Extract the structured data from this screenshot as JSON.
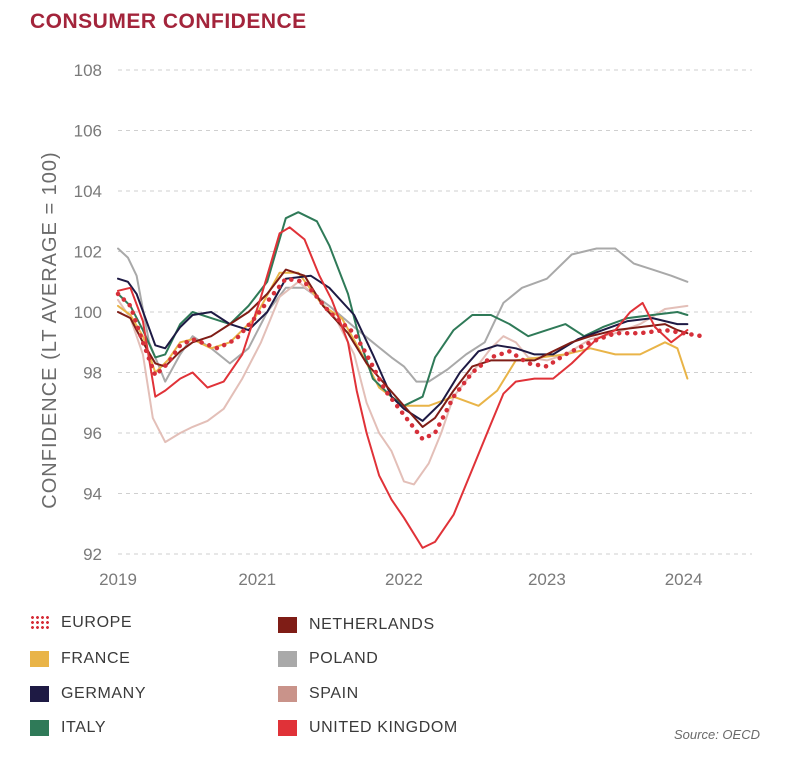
{
  "title": "CONSUMER CONFIDENCE",
  "source": "Source: OECD",
  "chart_data": {
    "type": "line",
    "ylabel": "CONFIDENCE (LT AVERAGE = 100)",
    "ylim": [
      92,
      108
    ],
    "yticks": [
      92,
      94,
      96,
      98,
      100,
      102,
      104,
      106,
      108
    ],
    "xticks": [
      {
        "x": 2019.0,
        "label": "2019"
      },
      {
        "x": 2020.12,
        "label": "2021"
      },
      {
        "x": 2021.3,
        "label": "2022"
      },
      {
        "x": 2022.45,
        "label": "2023"
      },
      {
        "x": 2023.55,
        "label": "2024"
      }
    ],
    "xlim": [
      2019.0,
      2024.1
    ],
    "grid": "horizontal-dashed",
    "legend_position": "bottom",
    "series": [
      {
        "name": "EUROPE",
        "color": "#d6303a",
        "style": "dotted",
        "points": [
          [
            2019.0,
            100.6
          ],
          [
            2019.1,
            100.2
          ],
          [
            2019.2,
            99.0
          ],
          [
            2019.3,
            97.9
          ],
          [
            2019.4,
            98.3
          ],
          [
            2019.5,
            98.9
          ],
          [
            2019.6,
            99.1
          ],
          [
            2019.8,
            98.8
          ],
          [
            2019.95,
            99.1
          ],
          [
            2020.1,
            99.8
          ],
          [
            2020.25,
            100.6
          ],
          [
            2020.35,
            101.1
          ],
          [
            2020.5,
            101.0
          ],
          [
            2020.7,
            100.0
          ],
          [
            2020.9,
            99.3
          ],
          [
            2021.0,
            98.6
          ],
          [
            2021.15,
            97.4
          ],
          [
            2021.3,
            96.6
          ],
          [
            2021.45,
            95.8
          ],
          [
            2021.55,
            96.0
          ],
          [
            2021.7,
            97.2
          ],
          [
            2021.85,
            98.0
          ],
          [
            2022.0,
            98.5
          ],
          [
            2022.15,
            98.7
          ],
          [
            2022.3,
            98.3
          ],
          [
            2022.45,
            98.2
          ],
          [
            2022.6,
            98.6
          ],
          [
            2022.8,
            99.0
          ],
          [
            2023.0,
            99.3
          ],
          [
            2023.2,
            99.3
          ],
          [
            2023.4,
            99.4
          ],
          [
            2023.55,
            99.3
          ],
          [
            2023.7,
            99.2
          ]
        ]
      },
      {
        "name": "FRANCE",
        "color": "#e9b448",
        "style": "solid",
        "points": [
          [
            2019.0,
            100.2
          ],
          [
            2019.1,
            99.9
          ],
          [
            2019.2,
            99.2
          ],
          [
            2019.3,
            98.0
          ],
          [
            2019.4,
            98.4
          ],
          [
            2019.5,
            99.0
          ],
          [
            2019.6,
            99.1
          ],
          [
            2019.75,
            98.8
          ],
          [
            2019.9,
            99.0
          ],
          [
            2020.1,
            99.8
          ],
          [
            2020.3,
            101.3
          ],
          [
            2020.45,
            101.3
          ],
          [
            2020.65,
            100.2
          ],
          [
            2020.8,
            99.8
          ],
          [
            2020.95,
            98.7
          ],
          [
            2021.1,
            97.5
          ],
          [
            2021.3,
            96.9
          ],
          [
            2021.5,
            96.9
          ],
          [
            2021.7,
            97.2
          ],
          [
            2021.9,
            96.9
          ],
          [
            2022.05,
            97.4
          ],
          [
            2022.2,
            98.4
          ],
          [
            2022.4,
            98.5
          ],
          [
            2022.6,
            98.6
          ],
          [
            2022.8,
            98.8
          ],
          [
            2023.0,
            98.6
          ],
          [
            2023.2,
            98.6
          ],
          [
            2023.4,
            99.0
          ],
          [
            2023.5,
            98.8
          ],
          [
            2023.58,
            97.8
          ]
        ]
      },
      {
        "name": "GERMANY",
        "color": "#1e1a44",
        "style": "solid",
        "points": [
          [
            2019.0,
            101.1
          ],
          [
            2019.08,
            101.0
          ],
          [
            2019.15,
            100.6
          ],
          [
            2019.3,
            98.9
          ],
          [
            2019.38,
            98.8
          ],
          [
            2019.5,
            99.5
          ],
          [
            2019.6,
            99.9
          ],
          [
            2019.75,
            100.0
          ],
          [
            2019.9,
            99.6
          ],
          [
            2020.05,
            99.4
          ],
          [
            2020.2,
            100.0
          ],
          [
            2020.35,
            101.1
          ],
          [
            2020.55,
            101.2
          ],
          [
            2020.7,
            100.8
          ],
          [
            2020.9,
            99.9
          ],
          [
            2021.05,
            98.6
          ],
          [
            2021.2,
            97.2
          ],
          [
            2021.3,
            96.8
          ],
          [
            2021.45,
            96.4
          ],
          [
            2021.6,
            97.0
          ],
          [
            2021.75,
            98.0
          ],
          [
            2021.9,
            98.7
          ],
          [
            2022.05,
            98.9
          ],
          [
            2022.2,
            98.8
          ],
          [
            2022.35,
            98.6
          ],
          [
            2022.5,
            98.6
          ],
          [
            2022.7,
            99.1
          ],
          [
            2022.9,
            99.4
          ],
          [
            2023.1,
            99.7
          ],
          [
            2023.3,
            99.8
          ],
          [
            2023.5,
            99.6
          ],
          [
            2023.58,
            99.6
          ]
        ]
      },
      {
        "name": "ITALY",
        "color": "#2f7a58",
        "style": "solid",
        "points": [
          [
            2019.0,
            100.6
          ],
          [
            2019.1,
            100.2
          ],
          [
            2019.2,
            99.4
          ],
          [
            2019.3,
            98.5
          ],
          [
            2019.38,
            98.6
          ],
          [
            2019.5,
            99.6
          ],
          [
            2019.6,
            100.0
          ],
          [
            2019.75,
            99.8
          ],
          [
            2019.9,
            99.6
          ],
          [
            2020.05,
            100.2
          ],
          [
            2020.2,
            101.0
          ],
          [
            2020.35,
            103.1
          ],
          [
            2020.45,
            103.3
          ],
          [
            2020.6,
            103.0
          ],
          [
            2020.7,
            102.2
          ],
          [
            2020.85,
            100.6
          ],
          [
            2020.95,
            99.0
          ],
          [
            2021.05,
            97.8
          ],
          [
            2021.2,
            97.2
          ],
          [
            2021.3,
            96.9
          ],
          [
            2021.45,
            97.2
          ],
          [
            2021.55,
            98.5
          ],
          [
            2021.7,
            99.4
          ],
          [
            2021.85,
            99.9
          ],
          [
            2022.0,
            99.9
          ],
          [
            2022.15,
            99.6
          ],
          [
            2022.3,
            99.2
          ],
          [
            2022.45,
            99.4
          ],
          [
            2022.6,
            99.6
          ],
          [
            2022.75,
            99.2
          ],
          [
            2022.9,
            99.5
          ],
          [
            2023.1,
            99.8
          ],
          [
            2023.3,
            99.9
          ],
          [
            2023.5,
            100.0
          ],
          [
            2023.58,
            99.9
          ]
        ]
      },
      {
        "name": "NETHERLANDS",
        "color": "#7f1d16",
        "style": "solid",
        "points": [
          [
            2019.0,
            100.0
          ],
          [
            2019.1,
            99.8
          ],
          [
            2019.2,
            99.0
          ],
          [
            2019.3,
            98.3
          ],
          [
            2019.38,
            98.2
          ],
          [
            2019.5,
            98.7
          ],
          [
            2019.6,
            99.0
          ],
          [
            2019.75,
            99.2
          ],
          [
            2019.9,
            99.6
          ],
          [
            2020.05,
            100.0
          ],
          [
            2020.2,
            100.6
          ],
          [
            2020.35,
            101.4
          ],
          [
            2020.5,
            101.2
          ],
          [
            2020.65,
            100.2
          ],
          [
            2020.85,
            99.3
          ],
          [
            2021.0,
            98.3
          ],
          [
            2021.15,
            97.6
          ],
          [
            2021.3,
            96.9
          ],
          [
            2021.45,
            96.2
          ],
          [
            2021.55,
            96.5
          ],
          [
            2021.7,
            97.4
          ],
          [
            2021.85,
            98.2
          ],
          [
            2022.0,
            98.4
          ],
          [
            2022.2,
            98.4
          ],
          [
            2022.35,
            98.4
          ],
          [
            2022.5,
            98.7
          ],
          [
            2022.65,
            99.0
          ],
          [
            2022.8,
            99.2
          ],
          [
            2023.0,
            99.4
          ],
          [
            2023.2,
            99.5
          ],
          [
            2023.4,
            99.6
          ],
          [
            2023.5,
            99.4
          ],
          [
            2023.58,
            99.3
          ]
        ]
      },
      {
        "name": "POLAND",
        "color": "#a9a9a9",
        "style": "solid",
        "points": [
          [
            2019.0,
            102.1
          ],
          [
            2019.08,
            101.8
          ],
          [
            2019.15,
            101.2
          ],
          [
            2019.25,
            99.0
          ],
          [
            2019.38,
            97.7
          ],
          [
            2019.5,
            98.6
          ],
          [
            2019.6,
            99.2
          ],
          [
            2019.75,
            98.8
          ],
          [
            2019.9,
            98.3
          ],
          [
            2020.05,
            98.8
          ],
          [
            2020.2,
            100.0
          ],
          [
            2020.35,
            100.8
          ],
          [
            2020.5,
            100.8
          ],
          [
            2020.7,
            100.2
          ],
          [
            2020.9,
            99.5
          ],
          [
            2021.05,
            99.0
          ],
          [
            2021.2,
            98.5
          ],
          [
            2021.3,
            98.2
          ],
          [
            2021.4,
            97.7
          ],
          [
            2021.5,
            97.7
          ],
          [
            2021.65,
            98.1
          ],
          [
            2021.8,
            98.6
          ],
          [
            2021.95,
            99.0
          ],
          [
            2022.1,
            100.3
          ],
          [
            2022.25,
            100.8
          ],
          [
            2022.45,
            101.1
          ],
          [
            2022.65,
            101.9
          ],
          [
            2022.85,
            102.1
          ],
          [
            2023.0,
            102.1
          ],
          [
            2023.15,
            101.6
          ],
          [
            2023.3,
            101.4
          ],
          [
            2023.45,
            101.2
          ],
          [
            2023.58,
            101.0
          ]
        ]
      },
      {
        "name": "SPAIN",
        "color": "#e3bfb8",
        "style": "solid",
        "points": [
          [
            2019.0,
            100.4
          ],
          [
            2019.1,
            99.8
          ],
          [
            2019.2,
            98.6
          ],
          [
            2019.28,
            96.5
          ],
          [
            2019.38,
            95.7
          ],
          [
            2019.5,
            96.0
          ],
          [
            2019.6,
            96.2
          ],
          [
            2019.72,
            96.4
          ],
          [
            2019.85,
            96.8
          ],
          [
            2020.0,
            97.8
          ],
          [
            2020.15,
            99.0
          ],
          [
            2020.3,
            100.5
          ],
          [
            2020.45,
            101.0
          ],
          [
            2020.6,
            100.5
          ],
          [
            2020.75,
            99.8
          ],
          [
            2020.9,
            98.6
          ],
          [
            2021.0,
            97.0
          ],
          [
            2021.1,
            96.0
          ],
          [
            2021.2,
            95.4
          ],
          [
            2021.3,
            94.4
          ],
          [
            2021.38,
            94.3
          ],
          [
            2021.5,
            95.0
          ],
          [
            2021.6,
            96.0
          ],
          [
            2021.7,
            97.2
          ],
          [
            2021.85,
            98.0
          ],
          [
            2022.0,
            98.8
          ],
          [
            2022.1,
            99.2
          ],
          [
            2022.2,
            99.0
          ],
          [
            2022.3,
            98.5
          ],
          [
            2022.45,
            98.4
          ],
          [
            2022.6,
            98.6
          ],
          [
            2022.8,
            99.1
          ],
          [
            2023.0,
            99.3
          ],
          [
            2023.2,
            99.6
          ],
          [
            2023.4,
            100.1
          ],
          [
            2023.58,
            100.2
          ]
        ]
      },
      {
        "name": "UNITED KINGDOM",
        "color": "#e03238",
        "style": "solid",
        "points": [
          [
            2019.0,
            100.7
          ],
          [
            2019.1,
            100.8
          ],
          [
            2019.2,
            99.7
          ],
          [
            2019.3,
            97.2
          ],
          [
            2019.38,
            97.4
          ],
          [
            2019.5,
            97.8
          ],
          [
            2019.6,
            98.0
          ],
          [
            2019.72,
            97.5
          ],
          [
            2019.85,
            97.7
          ],
          [
            2020.0,
            98.6
          ],
          [
            2020.15,
            100.5
          ],
          [
            2020.3,
            102.6
          ],
          [
            2020.38,
            102.8
          ],
          [
            2020.5,
            102.4
          ],
          [
            2020.62,
            101.2
          ],
          [
            2020.72,
            100.4
          ],
          [
            2020.85,
            99.0
          ],
          [
            2020.92,
            97.4
          ],
          [
            2021.0,
            96.0
          ],
          [
            2021.1,
            94.6
          ],
          [
            2021.2,
            93.8
          ],
          [
            2021.3,
            93.2
          ],
          [
            2021.45,
            92.2
          ],
          [
            2021.55,
            92.4
          ],
          [
            2021.7,
            93.3
          ],
          [
            2021.85,
            94.8
          ],
          [
            2022.0,
            96.3
          ],
          [
            2022.1,
            97.3
          ],
          [
            2022.2,
            97.7
          ],
          [
            2022.35,
            97.8
          ],
          [
            2022.5,
            97.8
          ],
          [
            2022.65,
            98.3
          ],
          [
            2022.85,
            99.1
          ],
          [
            2023.0,
            99.4
          ],
          [
            2023.12,
            100.0
          ],
          [
            2023.22,
            100.3
          ],
          [
            2023.32,
            99.5
          ],
          [
            2023.45,
            99.0
          ],
          [
            2023.58,
            99.4
          ]
        ]
      }
    ]
  }
}
